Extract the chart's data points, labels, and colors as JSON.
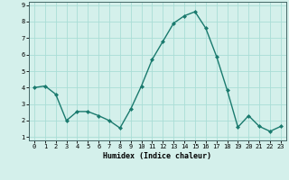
{
  "x": [
    0,
    1,
    2,
    3,
    4,
    5,
    6,
    7,
    8,
    9,
    10,
    11,
    12,
    13,
    14,
    15,
    16,
    17,
    18,
    19,
    20,
    21,
    22,
    23
  ],
  "y": [
    4.0,
    4.1,
    3.6,
    2.0,
    2.55,
    2.55,
    2.3,
    2.0,
    1.55,
    2.7,
    4.1,
    5.7,
    6.8,
    7.9,
    8.35,
    8.6,
    7.6,
    5.9,
    3.85,
    1.6,
    2.3,
    1.65,
    1.35,
    1.65
  ],
  "line_color": "#1a7a6e",
  "marker": "D",
  "marker_size": 2.0,
  "bg_color": "#d4f0eb",
  "grid_color": "#aaddd6",
  "xlabel": "Humidex (Indice chaleur)",
  "xlim": [
    -0.5,
    23.5
  ],
  "ylim": [
    0.8,
    9.2
  ],
  "xticks": [
    0,
    1,
    2,
    3,
    4,
    5,
    6,
    7,
    8,
    9,
    10,
    11,
    12,
    13,
    14,
    15,
    16,
    17,
    18,
    19,
    20,
    21,
    22,
    23
  ],
  "yticks": [
    1,
    2,
    3,
    4,
    5,
    6,
    7,
    8,
    9
  ],
  "axis_fontsize": 5.5,
  "tick_fontsize": 5.0,
  "xlabel_fontsize": 6.0
}
